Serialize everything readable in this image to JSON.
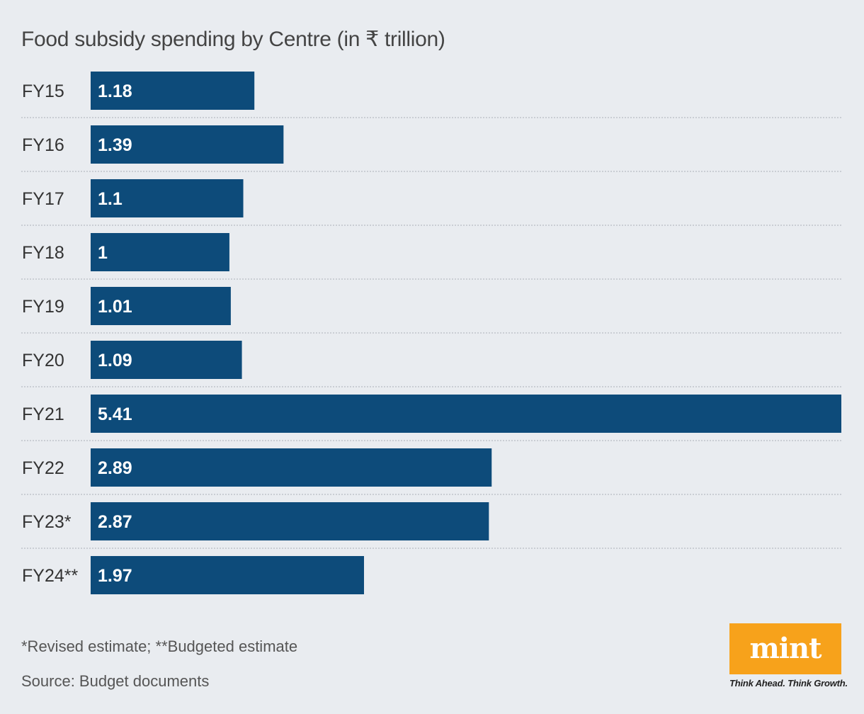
{
  "chart_data": {
    "type": "bar",
    "orientation": "horizontal",
    "title": "Food subsidy spending by Centre (in ₹ trillion)",
    "categories": [
      "FY15",
      "FY16",
      "FY17",
      "FY18",
      "FY19",
      "FY20",
      "FY21",
      "FY22",
      "FY23*",
      "FY24**"
    ],
    "values": [
      1.18,
      1.39,
      1.1,
      1,
      1.01,
      1.09,
      5.41,
      2.89,
      2.87,
      1.97
    ],
    "value_labels": [
      "1.18",
      "1.39",
      "1.1",
      "1",
      "1.01",
      "1.09",
      "5.41",
      "2.89",
      "2.87",
      "1.97"
    ],
    "xlim": [
      0,
      5.41
    ],
    "grid": false,
    "bar_color": "#0d4b7a",
    "separator_style": "dotted"
  },
  "footnote": "*Revised estimate; **Budgeted estimate",
  "source": "Source: Budget documents",
  "logo": {
    "word": "mint",
    "tagline": "Think Ahead. Think Growth.",
    "color": "#f7a21b"
  }
}
